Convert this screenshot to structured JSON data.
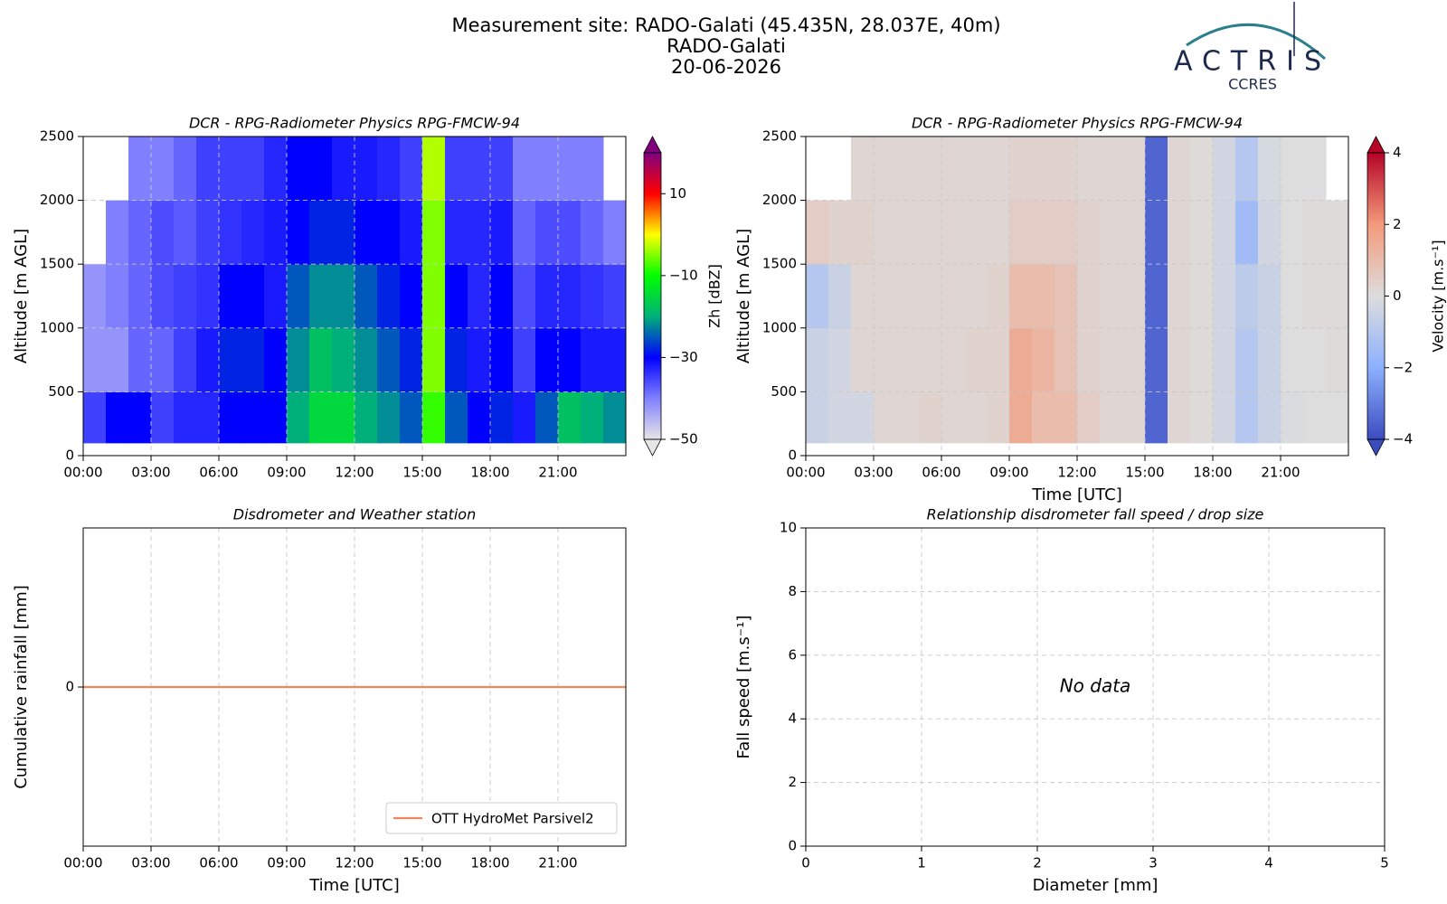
{
  "header": {
    "title": "Measurement site: RADO-Galati (45.435N, 28.037E, 40m)",
    "site": "RADO-Galati",
    "date": "20-06-2026",
    "logo": "ACTRIS",
    "logo_sub": "CCRES"
  },
  "chart_data": [
    {
      "type": "heatmap",
      "title": "DCR - RPG-Radiometer Physics RPG-FMCW-94",
      "ylabel": "Altitude [m AGL]",
      "xlim": [
        0,
        24
      ],
      "xticks": [
        {
          "value": 0,
          "label": "00:00"
        },
        {
          "value": 3,
          "label": "03:00"
        },
        {
          "value": 6,
          "label": "06:00"
        },
        {
          "value": 9,
          "label": "09:00"
        },
        {
          "value": 12,
          "label": "12:00"
        },
        {
          "value": 15,
          "label": "15:00"
        },
        {
          "value": 18,
          "label": "18:00"
        },
        {
          "value": 21,
          "label": "21:00"
        }
      ],
      "ylim": [
        0,
        2500
      ],
      "yticks": [
        0,
        500,
        1000,
        1500,
        2000,
        2500
      ],
      "grid": true,
      "xbins": [
        0,
        1,
        2,
        3,
        4,
        5,
        6,
        7,
        8,
        9,
        10,
        11,
        12,
        13,
        14,
        15,
        16,
        17,
        18,
        19,
        20,
        21,
        22,
        23,
        24
      ],
      "ybins": [
        100,
        500,
        1000,
        1500,
        2000,
        2500
      ],
      "values": [
        [
          -35,
          -42,
          -42,
          null,
          null
        ],
        [
          -30,
          -42,
          -40,
          -40,
          null
        ],
        [
          -30,
          -38,
          -38,
          -38,
          -40
        ],
        [
          -35,
          -38,
          -36,
          -36,
          -40
        ],
        [
          -33,
          -35,
          -35,
          -37,
          -38
        ],
        [
          -33,
          -32,
          -34,
          -35,
          -35
        ],
        [
          -30,
          -28,
          -30,
          -34,
          -35
        ],
        [
          -30,
          -28,
          -30,
          -33,
          -35
        ],
        [
          -30,
          -30,
          -32,
          -32,
          -33
        ],
        [
          -20,
          -22,
          -25,
          -30,
          -30
        ],
        [
          -15,
          -18,
          -22,
          -28,
          -30
        ],
        [
          -15,
          -20,
          -22,
          -28,
          -32
        ],
        [
          -20,
          -22,
          -25,
          -30,
          -32
        ],
        [
          -22,
          -25,
          -28,
          -30,
          -33
        ],
        [
          -25,
          -28,
          -30,
          -32,
          -35
        ],
        [
          -8,
          -5,
          -5,
          -5,
          -3
        ],
        [
          -25,
          -28,
          -30,
          -33,
          -35
        ],
        [
          -30,
          -32,
          -33,
          -33,
          -35
        ],
        [
          -28,
          -30,
          -30,
          -32,
          -35
        ],
        [
          -32,
          -35,
          -36,
          -38,
          -40
        ],
        [
          -25,
          -30,
          -33,
          -36,
          -40
        ],
        [
          -18,
          -30,
          -33,
          -36,
          -40
        ],
        [
          -20,
          -32,
          -34,
          -38,
          -40
        ],
        [
          -22,
          -32,
          -35,
          -40,
          null
        ]
      ],
      "clim": [
        -50,
        20
      ],
      "cticks": [
        {
          "value": -50,
          "label": "−50"
        },
        {
          "value": -30,
          "label": "−30"
        },
        {
          "value": -10,
          "label": "−10"
        },
        10
      ],
      "clabel": "Zh [dBZ]",
      "colormap": [
        "#e6e6e6",
        "#8080ff",
        "#0000ff",
        "#00b07a",
        "#00ff00",
        "#ffff00",
        "#ff0000",
        "#800080"
      ]
    },
    {
      "type": "heatmap",
      "title": "DCR - RPG-Radiometer Physics RPG-FMCW-94",
      "ylabel": "Altitude [m AGL]",
      "xlabel": "Time [UTC]",
      "xlim": [
        0,
        24
      ],
      "xticks": [
        {
          "value": 0,
          "label": "00:00"
        },
        {
          "value": 3,
          "label": "03:00"
        },
        {
          "value": 6,
          "label": "06:00"
        },
        {
          "value": 9,
          "label": "09:00"
        },
        {
          "value": 12,
          "label": "12:00"
        },
        {
          "value": 15,
          "label": "15:00"
        },
        {
          "value": 18,
          "label": "18:00"
        },
        {
          "value": 21,
          "label": "21:00"
        }
      ],
      "ylim": [
        0,
        2500
      ],
      "yticks": [
        0,
        500,
        1000,
        1500,
        2000,
        2500
      ],
      "grid": true,
      "xbins": [
        0,
        1,
        2,
        3,
        4,
        5,
        6,
        7,
        8,
        9,
        10,
        11,
        12,
        13,
        14,
        15,
        16,
        17,
        18,
        19,
        20,
        21,
        22,
        23,
        24
      ],
      "ybins": [
        100,
        500,
        1000,
        1500,
        2000,
        2500
      ],
      "values": [
        [
          -0.5,
          -0.5,
          -1,
          0.5,
          null
        ],
        [
          -0.3,
          -0.3,
          -0.5,
          0.3,
          null
        ],
        [
          -0.3,
          0.2,
          0.2,
          0.3,
          0.2
        ],
        [
          0.2,
          0.2,
          0.2,
          0.2,
          0.2
        ],
        [
          0.2,
          0.2,
          0.2,
          0.2,
          0.2
        ],
        [
          0.3,
          0.2,
          0.2,
          0.2,
          0.2
        ],
        [
          0.2,
          0.2,
          0.2,
          0.2,
          0.2
        ],
        [
          0.2,
          0.3,
          0.2,
          0.2,
          0.2
        ],
        [
          0.3,
          0.3,
          0.3,
          0.2,
          0.2
        ],
        [
          1.5,
          1.5,
          1,
          0.5,
          0.3
        ],
        [
          1,
          1.2,
          1,
          0.5,
          0.3
        ],
        [
          1,
          0.8,
          0.8,
          0.5,
          0.3
        ],
        [
          0.5,
          0.3,
          0.3,
          0.3,
          0.2
        ],
        [
          0.2,
          0.2,
          0.2,
          0.2,
          0.2
        ],
        [
          0.2,
          0.2,
          0.2,
          0.2,
          0.2
        ],
        [
          -3.5,
          -3.5,
          -3.5,
          -3.5,
          -3.5
        ],
        [
          0.2,
          0.2,
          0.2,
          0.2,
          0.2
        ],
        [
          0.1,
          0.1,
          0.1,
          0.1,
          0.1
        ],
        [
          -0.3,
          -0.3,
          -0.3,
          -0.3,
          -0.3
        ],
        [
          -1,
          -1,
          -0.8,
          -1.5,
          -1
        ],
        [
          -0.5,
          -0.5,
          -0.5,
          -0.3,
          -0.2
        ],
        [
          -0.1,
          0,
          0,
          0,
          0
        ],
        [
          0,
          0,
          0.1,
          0.1,
          0
        ],
        [
          0,
          0.1,
          0.1,
          0.1,
          null
        ]
      ],
      "clim": [
        -4,
        4
      ],
      "cticks": [
        {
          "value": -4,
          "label": "−4"
        },
        {
          "value": -2,
          "label": "−2"
        },
        0,
        2,
        4
      ],
      "clabel": "Velocity [m.s⁻¹]",
      "colormap": [
        "#3b4cc0",
        "#8db0fe",
        "#dddddd",
        "#f49a7b",
        "#b40426"
      ]
    },
    {
      "type": "line",
      "title": "Disdrometer and Weather station",
      "ylabel": "Cumulative rainfall [mm]",
      "xlabel": "Time [UTC]",
      "xlim": [
        0,
        24
      ],
      "xticks": [
        {
          "value": 0,
          "label": "00:00"
        },
        {
          "value": 3,
          "label": "03:00"
        },
        {
          "value": 6,
          "label": "06:00"
        },
        {
          "value": 9,
          "label": "09:00"
        },
        {
          "value": 12,
          "label": "12:00"
        },
        {
          "value": 15,
          "label": "15:00"
        },
        {
          "value": 18,
          "label": "18:00"
        },
        {
          "value": 21,
          "label": "21:00"
        }
      ],
      "ylim": [
        -1,
        1
      ],
      "yticks": [
        0
      ],
      "grid": true,
      "legend": "lower right",
      "x": [
        0,
        24
      ],
      "series": [
        {
          "name": "OTT HydroMet Parsivel2",
          "color": "#f0875a",
          "values": [
            0,
            0
          ]
        }
      ]
    },
    {
      "type": "scatter",
      "title": "Relationship disdrometer fall speed / drop size",
      "ylabel": "Fall speed [m.s⁻¹]",
      "xlabel": "Diameter [mm]",
      "xlim": [
        0,
        5
      ],
      "xticks": [
        0,
        1,
        2,
        3,
        4,
        5
      ],
      "ylim": [
        0,
        10
      ],
      "yticks": [
        0,
        2,
        4,
        6,
        8,
        10
      ],
      "grid": true,
      "annotation": "No data"
    }
  ]
}
